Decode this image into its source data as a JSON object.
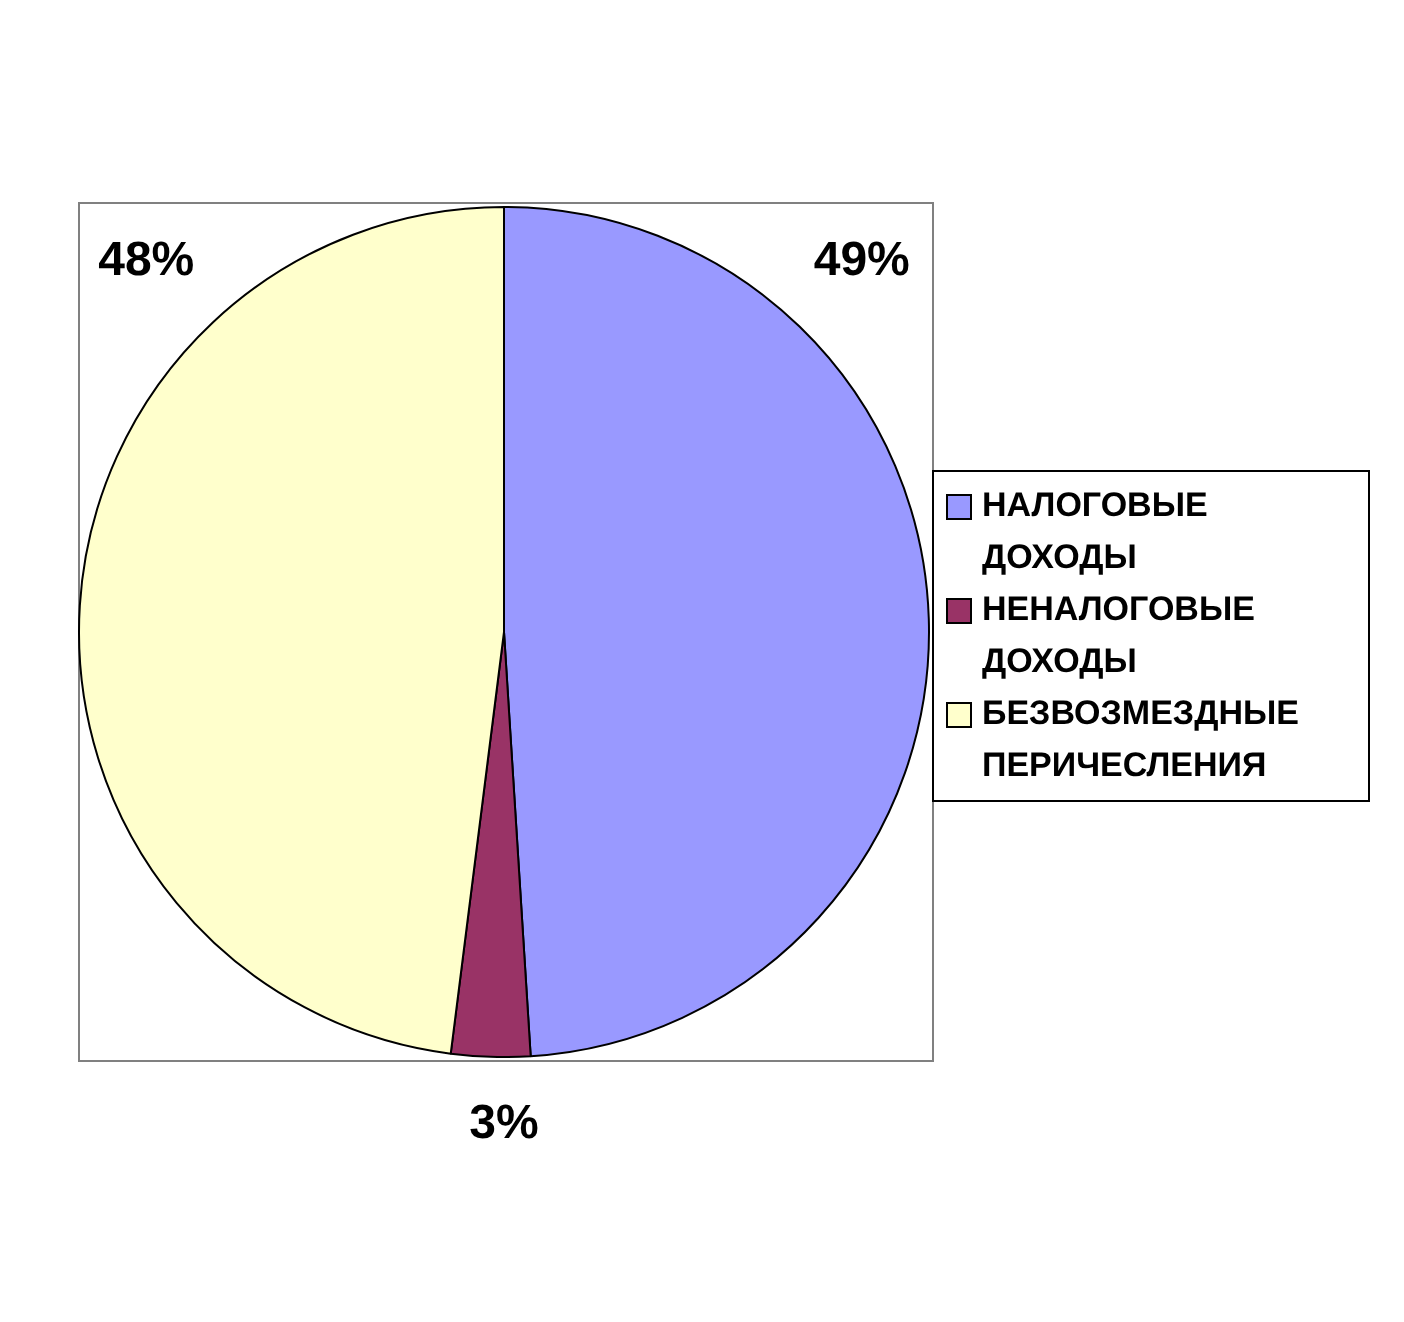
{
  "chart_data": {
    "type": "pie",
    "categories": [
      "НАЛОГОВЫЕ ДОХОДЫ",
      "НЕНАЛОГОВЫЕ ДОХОДЫ",
      "БЕЗВОЗМЕЗДНЫЕ ПЕРИЧЕСЛЕНИЯ"
    ],
    "values": [
      49,
      3,
      48
    ],
    "colors": [
      "#9999ff",
      "#993366",
      "#ffffcc"
    ],
    "value_labels": [
      "49%",
      "3%",
      "48%"
    ],
    "legend": "right"
  }
}
